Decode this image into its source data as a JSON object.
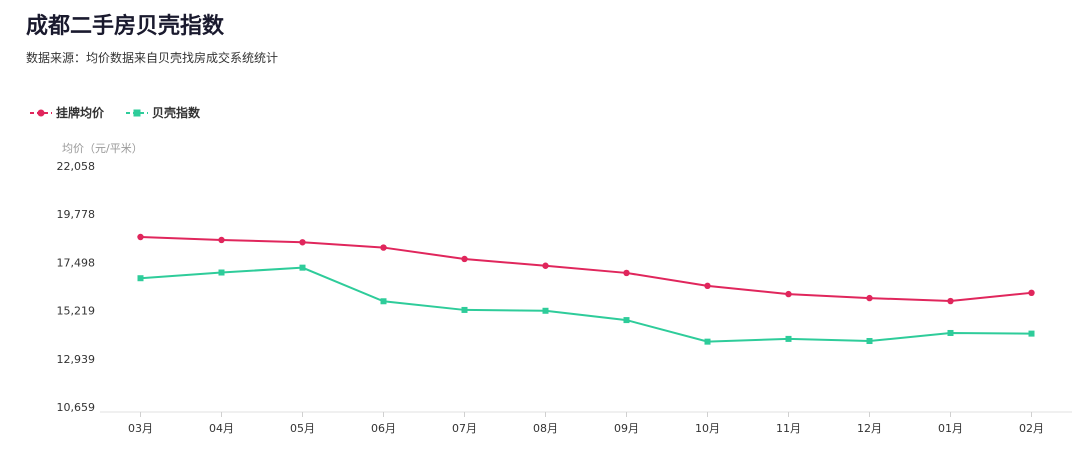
{
  "header": {
    "title": "成都二手房贝壳指数",
    "subtitle": "数据来源：均价数据来自贝壳找房成交系统统计"
  },
  "legend": [
    {
      "label": "挂牌均价",
      "color": "#e0265c"
    },
    {
      "label": "贝壳指数",
      "color": "#2ecc9a"
    }
  ],
  "chart_data": {
    "type": "line",
    "ylabel": "均价（元/平米）",
    "categories": [
      "03月",
      "04月",
      "05月",
      "06月",
      "07月",
      "08月",
      "09月",
      "10月",
      "11月",
      "12月",
      "01月",
      "02月"
    ],
    "yticks": [
      "10,659",
      "12,939",
      "15,219",
      "17,498",
      "19,778",
      "22,058"
    ],
    "ylim": [
      10659,
      22058
    ],
    "grid": false,
    "legend_position": "top-left",
    "series": [
      {
        "name": "挂牌均价",
        "color": "#e0265c",
        "marker": "circle",
        "values": [
          18700,
          18560,
          18450,
          18200,
          17660,
          17340,
          17000,
          16390,
          16000,
          15810,
          15670,
          16060
        ]
      },
      {
        "name": "贝壳指数",
        "color": "#2ecc9a",
        "marker": "square",
        "values": [
          16750,
          17020,
          17250,
          15660,
          15250,
          15210,
          14770,
          13750,
          13880,
          13780,
          14160,
          14130
        ]
      }
    ]
  }
}
